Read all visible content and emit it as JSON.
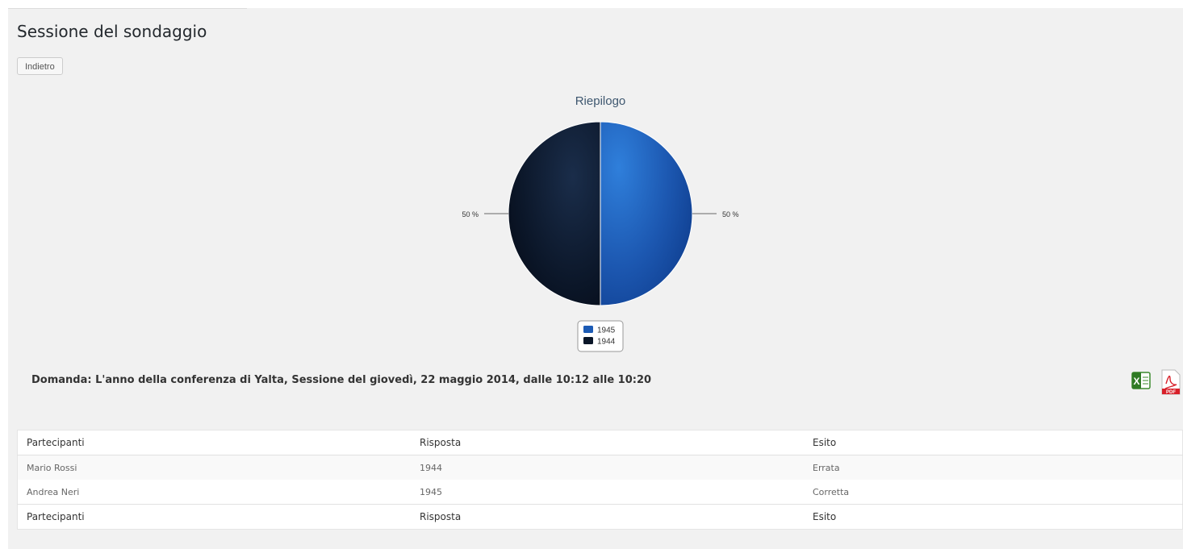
{
  "page": {
    "title": "Sessione del sondaggio",
    "back_label": "Indietro"
  },
  "chart_data": {
    "type": "pie",
    "title": "Riepilogo",
    "slices": [
      {
        "label": "1945",
        "value": 50,
        "display": "50 %",
        "color": "#1c5bb5"
      },
      {
        "label": "1944",
        "value": 50,
        "display": "50 %",
        "color": "#0a1628"
      }
    ],
    "legend": [
      "1945",
      "1944"
    ],
    "legend_position": "bottom-center"
  },
  "question": "Domanda: L'anno della conferenza di Yalta, Sessione del giovedì, 22 maggio 2014, dalle 10:12 alle 10:20",
  "exports": [
    {
      "icon": "excel-icon",
      "label": "X"
    },
    {
      "icon": "pdf-icon",
      "label": "PDF"
    }
  ],
  "table": {
    "columns": [
      "Partecipanti",
      "Risposta",
      "Esito"
    ],
    "rows": [
      [
        "Mario Rossi",
        "1944",
        "Errata"
      ],
      [
        "Andrea Neri",
        "1945",
        "Corretta"
      ]
    ],
    "footer": [
      "Partecipanti",
      "Risposta",
      "Esito"
    ]
  }
}
